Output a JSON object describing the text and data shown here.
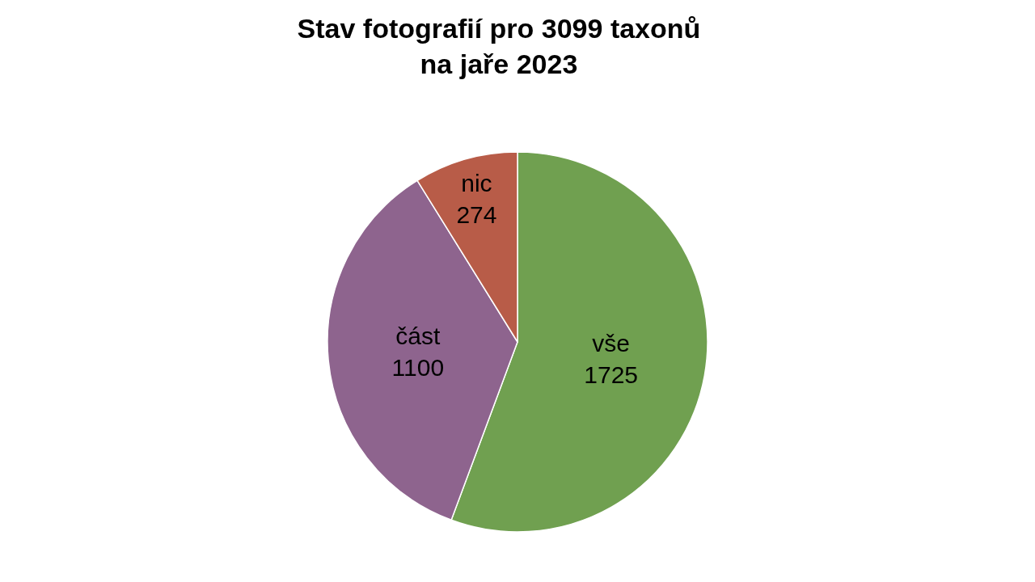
{
  "chart_data": {
    "type": "pie",
    "title": "Stav fotografií pro 3099 taxonů\nna jaře 2023",
    "categories": [
      "vše",
      "část",
      "nic"
    ],
    "values": [
      1725,
      1100,
      274
    ],
    "colors": [
      "#70a050",
      "#8e648e",
      "#b85c48"
    ],
    "data_labels": true,
    "legend": false
  }
}
